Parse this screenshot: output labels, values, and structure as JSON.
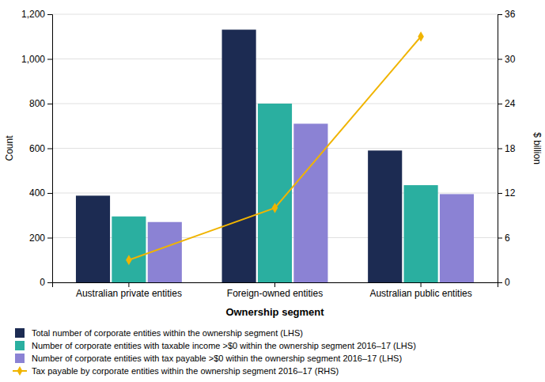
{
  "chart_data": {
    "type": "bar",
    "xlabel": "Ownership segment",
    "ylabel": "Count",
    "y2label": "$ billion",
    "categories": [
      "Australian private entities",
      "Foreign-owned entities",
      "Australian public entities"
    ],
    "series": [
      {
        "name": "Total number of corporate entities within the ownership segment (LHS)",
        "color": "#1c2b52",
        "values": [
          388,
          1131,
          590
        ]
      },
      {
        "name": "Number of corporate entities with taxable income >$0 within the ownership segment 2016–17 (LHS)",
        "color": "#2aafa0",
        "values": [
          295,
          800,
          435
        ]
      },
      {
        "name": "Number of corporate entities with tax payable >$0 within the ownership segment 2016–17 (LHS)",
        "color": "#8b82d4",
        "values": [
          270,
          710,
          395
        ]
      },
      {
        "name": "Tax payable by corporate entities within the ownership segment 2016–17 (RHS)",
        "color": "#f0b400",
        "values": [
          3.0,
          10.0,
          33.0
        ],
        "type": "line",
        "axis": "y2",
        "marker": "diamond"
      }
    ],
    "ylim": [
      0,
      1200
    ],
    "yticks": [
      0,
      200,
      400,
      600,
      800,
      {
        "value": 1000,
        "label": "1,000"
      },
      {
        "value": 1200,
        "label": "1,200"
      }
    ],
    "y2lim": [
      0,
      36
    ],
    "y2ticks": [
      0,
      6,
      12,
      18,
      24,
      30,
      36
    ],
    "grid": true,
    "legend": "bottom"
  }
}
